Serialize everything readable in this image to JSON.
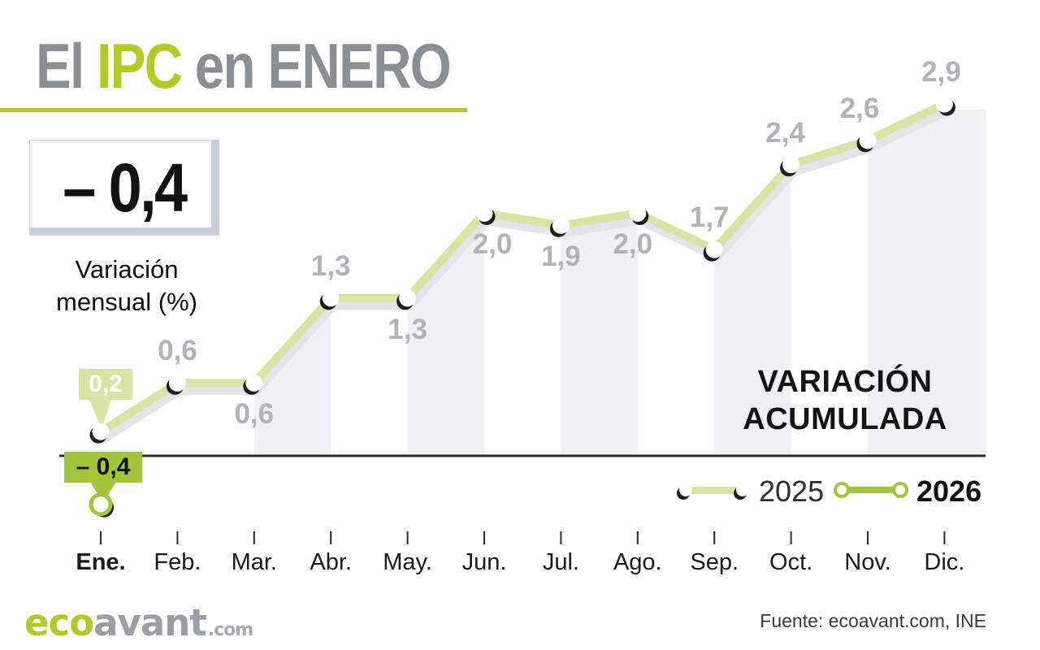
{
  "title": {
    "prefix": "El ",
    "highlight": "IPC",
    "suffix": " en ENERO"
  },
  "headline": {
    "value": "– 0,4",
    "label_line1": "Variación",
    "label_line2": "mensual (%)"
  },
  "chart_data": {
    "type": "line",
    "x": [
      "Ene.",
      "Feb.",
      "Mar.",
      "Abr.",
      "May.",
      "Jun.",
      "Jul.",
      "Ago.",
      "Sep.",
      "Oct.",
      "Nov.",
      "Dic."
    ],
    "series": [
      {
        "name": "2025",
        "values": [
          0.2,
          0.6,
          0.6,
          1.3,
          1.3,
          2.0,
          1.9,
          2.0,
          1.7,
          2.4,
          2.6,
          2.9
        ],
        "labels": [
          "0,2",
          "0,6",
          "0,6",
          "1,3",
          "1,3",
          "2,0",
          "1,9",
          "2,0",
          "1,7",
          "2,4",
          "2,6",
          "2,9"
        ],
        "label_positions": [
          "callout",
          "above",
          "below",
          "above",
          "below",
          "below",
          "below",
          "below",
          "above",
          "above",
          "above",
          "above"
        ]
      },
      {
        "name": "2026",
        "values": [
          -0.4
        ],
        "labels": [
          "– 0,4"
        ],
        "label_positions": [
          "callout"
        ]
      }
    ],
    "ylim": [
      -0.8,
      3.2
    ],
    "xlabel": "",
    "ylabel": "Variación acumulada (%)",
    "annotation_title": [
      "VARIACIÓN",
      "ACUMULADA"
    ],
    "legend": {
      "position": "bottom-right",
      "entries": [
        "2025",
        "2026"
      ]
    },
    "grid": "off",
    "shaded_intervals": [
      [
        2,
        3
      ],
      [
        4,
        5
      ],
      [
        6,
        7
      ],
      [
        8,
        9
      ],
      [
        10,
        11
      ],
      [
        11,
        12
      ]
    ]
  },
  "colors": {
    "brand_lime": "#b5ca25",
    "series_2025": "#d9e3a4",
    "series_2026": "#a3c53c",
    "line_shadow": "#e4e4e9",
    "marker_shadow": "#1d1d1d",
    "value_gray": "#b1b3b6",
    "title_gray": "#8b8e92",
    "axis_black": "#2b2b2b",
    "column_fill": "#f1f1f5"
  },
  "footer": {
    "logo_eco": "eco",
    "logo_avant": "avant",
    "logo_tld": ".com",
    "source": "Fuente: ecoavant.com, INE"
  }
}
